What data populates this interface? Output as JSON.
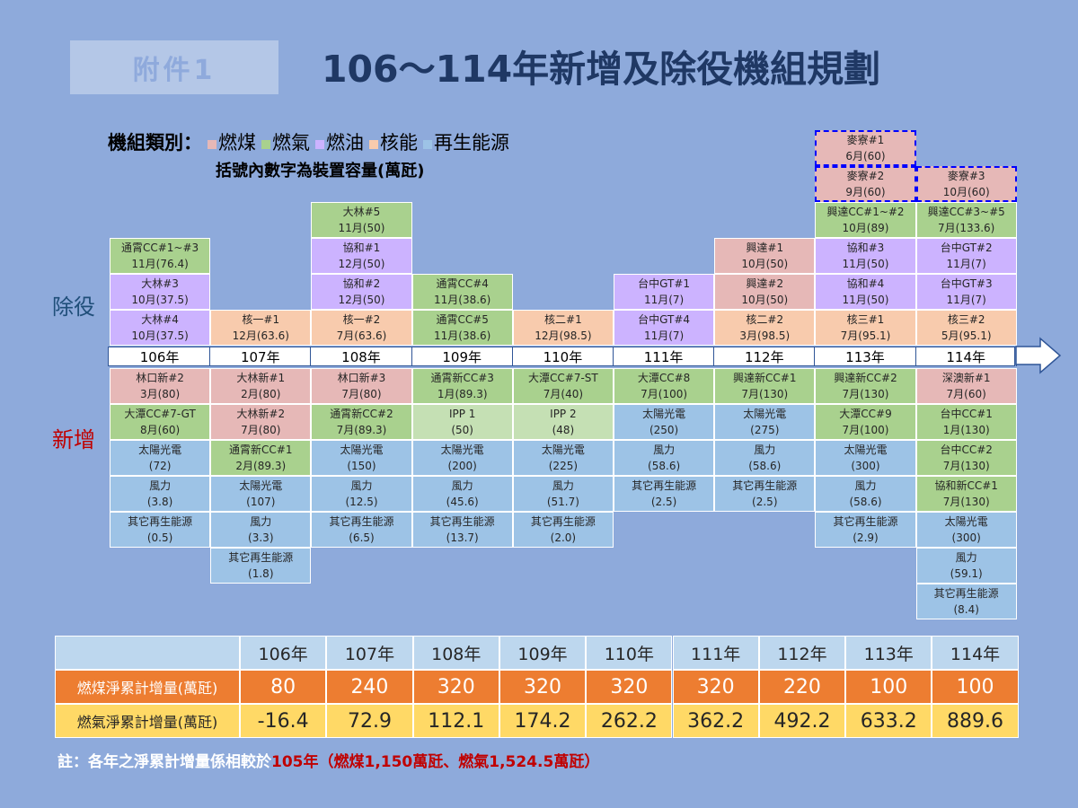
{
  "badge": "附件1",
  "title": "106～114年新增及除役機組規劃",
  "legend": {
    "prefix": "機組類別：",
    "items": [
      {
        "label": "燃煤",
        "color": "#e6b8b7"
      },
      {
        "label": "燃氣",
        "color": "#a9d18e"
      },
      {
        "label": "燃油",
        "color": "#ccb3ff"
      },
      {
        "label": "核能",
        "color": "#f8cbad"
      },
      {
        "label": "再生能源",
        "color": "#9dc3e6"
      }
    ],
    "note": "括號內數字為裝置容量(萬瓩)"
  },
  "side_labels": {
    "retire": "除役",
    "new": "新增"
  },
  "colors": {
    "coal": "#e6b8b7",
    "gas": "#a9d18e",
    "gas_light": "#c5e0b4",
    "oil": "#ccb3ff",
    "nuclear": "#f8cbad",
    "renew": "#9dc3e6",
    "retire_text": "#1f4e79",
    "new_text": "#c00000"
  },
  "years": [
    "106年",
    "107年",
    "108年",
    "109年",
    "110年",
    "111年",
    "112年",
    "113年",
    "114年"
  ],
  "retire": [
    [
      {
        "name": "大林#4",
        "cap": "10月(37.5)",
        "type": "oil"
      },
      {
        "name": "大林#3",
        "cap": "10月(37.5)",
        "type": "oil"
      },
      {
        "name": "通霄CC#1~#3",
        "cap": "11月(76.4)",
        "type": "gas"
      }
    ],
    [
      {
        "name": "核一#1",
        "cap": "12月(63.6)",
        "type": "nuclear"
      }
    ],
    [
      {
        "name": "核一#2",
        "cap": "7月(63.6)",
        "type": "nuclear"
      },
      {
        "name": "協和#2",
        "cap": "12月(50)",
        "type": "oil"
      },
      {
        "name": "協和#1",
        "cap": "12月(50)",
        "type": "oil"
      },
      {
        "name": "大林#5",
        "cap": "11月(50)",
        "type": "gas"
      }
    ],
    [
      {
        "name": "通霄CC#5",
        "cap": "11月(38.6)",
        "type": "gas"
      },
      {
        "name": "通霄CC#4",
        "cap": "11月(38.6)",
        "type": "gas"
      }
    ],
    [
      {
        "name": "核二#1",
        "cap": "12月(98.5)",
        "type": "nuclear"
      }
    ],
    [
      {
        "name": "台中GT#4",
        "cap": "11月(7)",
        "type": "oil"
      },
      {
        "name": "台中GT#1",
        "cap": "11月(7)",
        "type": "oil"
      }
    ],
    [
      {
        "name": "核二#2",
        "cap": "3月(98.5)",
        "type": "nuclear"
      },
      {
        "name": "興達#2",
        "cap": "10月(50)",
        "type": "coal"
      },
      {
        "name": "興達#1",
        "cap": "10月(50)",
        "type": "coal"
      }
    ],
    [
      {
        "name": "核三#1",
        "cap": "7月(95.1)",
        "type": "nuclear"
      },
      {
        "name": "協和#4",
        "cap": "11月(50)",
        "type": "oil"
      },
      {
        "name": "協和#3",
        "cap": "11月(50)",
        "type": "oil"
      },
      {
        "name": "興達CC#1~#2",
        "cap": "10月(89)",
        "type": "gas"
      },
      {
        "name": "麥寮#2",
        "cap": "9月(60)",
        "type": "coal",
        "dashed": true
      },
      {
        "name": "麥寮#1",
        "cap": "6月(60)",
        "type": "coal",
        "dashed": true
      }
    ],
    [
      {
        "name": "核三#2",
        "cap": "5月(95.1)",
        "type": "nuclear"
      },
      {
        "name": "台中GT#3",
        "cap": "11月(7)",
        "type": "oil"
      },
      {
        "name": "台中GT#2",
        "cap": "11月(7)",
        "type": "oil"
      },
      {
        "name": "興達CC#3~#5",
        "cap": "7月(133.6)",
        "type": "gas"
      },
      {
        "name": "麥寮#3",
        "cap": "10月(60)",
        "type": "coal",
        "dashed": true
      }
    ]
  ],
  "added": [
    [
      {
        "name": "林口新#2",
        "cap": "3月(80)",
        "type": "coal"
      },
      {
        "name": "大潭CC#7-GT",
        "cap": "8月(60)",
        "type": "gas"
      },
      {
        "name": "太陽光電",
        "cap": "(72)",
        "type": "renew"
      },
      {
        "name": "風力",
        "cap": "(3.8)",
        "type": "renew"
      },
      {
        "name": "其它再生能源",
        "cap": "(0.5)",
        "type": "renew"
      }
    ],
    [
      {
        "name": "大林新#1",
        "cap": "2月(80)",
        "type": "coal"
      },
      {
        "name": "大林新#2",
        "cap": "7月(80)",
        "type": "coal"
      },
      {
        "name": "通霄新CC#1",
        "cap": "2月(89.3)",
        "type": "gas"
      },
      {
        "name": "太陽光電",
        "cap": "(107)",
        "type": "renew"
      },
      {
        "name": "風力",
        "cap": "(3.3)",
        "type": "renew"
      },
      {
        "name": "其它再生能源",
        "cap": "(1.8)",
        "type": "renew"
      }
    ],
    [
      {
        "name": "林口新#3",
        "cap": "7月(80)",
        "type": "coal"
      },
      {
        "name": "通霄新CC#2",
        "cap": "7月(89.3)",
        "type": "gas"
      },
      {
        "name": "太陽光電",
        "cap": "(150)",
        "type": "renew"
      },
      {
        "name": "風力",
        "cap": "(12.5)",
        "type": "renew"
      },
      {
        "name": "其它再生能源",
        "cap": "(6.5)",
        "type": "renew"
      }
    ],
    [
      {
        "name": "通霄新CC#3",
        "cap": "1月(89.3)",
        "type": "gas"
      },
      {
        "name": "IPP 1",
        "cap": "(50)",
        "type": "gas_light"
      },
      {
        "name": "太陽光電",
        "cap": "(200)",
        "type": "renew"
      },
      {
        "name": "風力",
        "cap": "(45.6)",
        "type": "renew"
      },
      {
        "name": "其它再生能源",
        "cap": "(13.7)",
        "type": "renew"
      }
    ],
    [
      {
        "name": "大潭CC#7-ST",
        "cap": "7月(40)",
        "type": "gas"
      },
      {
        "name": "IPP 2",
        "cap": "(48)",
        "type": "gas_light"
      },
      {
        "name": "太陽光電",
        "cap": "(225)",
        "type": "renew"
      },
      {
        "name": "風力",
        "cap": "(51.7)",
        "type": "renew"
      },
      {
        "name": "其它再生能源",
        "cap": "(2.0)",
        "type": "renew"
      }
    ],
    [
      {
        "name": "大潭CC#8",
        "cap": "7月(100)",
        "type": "gas"
      },
      {
        "name": "太陽光電",
        "cap": "(250)",
        "type": "renew"
      },
      {
        "name": "風力",
        "cap": "(58.6)",
        "type": "renew"
      },
      {
        "name": "其它再生能源",
        "cap": "(2.5)",
        "type": "renew"
      }
    ],
    [
      {
        "name": "興達新CC#1",
        "cap": "7月(130)",
        "type": "gas"
      },
      {
        "name": "太陽光電",
        "cap": "(275)",
        "type": "renew"
      },
      {
        "name": "風力",
        "cap": "(58.6)",
        "type": "renew"
      },
      {
        "name": "其它再生能源",
        "cap": "(2.5)",
        "type": "renew"
      }
    ],
    [
      {
        "name": "興達新CC#2",
        "cap": "7月(130)",
        "type": "gas"
      },
      {
        "name": "大潭CC#9",
        "cap": "7月(100)",
        "type": "gas"
      },
      {
        "name": "太陽光電",
        "cap": "(300)",
        "type": "renew"
      },
      {
        "name": "風力",
        "cap": "(58.6)",
        "type": "renew"
      },
      {
        "name": "其它再生能源",
        "cap": "(2.9)",
        "type": "renew"
      }
    ],
    [
      {
        "name": "深澳新#1",
        "cap": "7月(60)",
        "type": "coal"
      },
      {
        "name": "台中CC#1",
        "cap": "1月(130)",
        "type": "gas"
      },
      {
        "name": "台中CC#2",
        "cap": "7月(130)",
        "type": "gas"
      },
      {
        "name": "協和新CC#1",
        "cap": "7月(130)",
        "type": "gas"
      },
      {
        "name": "太陽光電",
        "cap": "(300)",
        "type": "renew"
      },
      {
        "name": "風力",
        "cap": "(59.1)",
        "type": "renew"
      },
      {
        "name": "其它再生能源",
        "cap": "(8.4)",
        "type": "renew"
      }
    ]
  ],
  "summary": {
    "years": [
      "106年",
      "107年",
      "108年",
      "109年",
      "110年",
      "111年",
      "112年",
      "113年",
      "114年"
    ],
    "rows": [
      {
        "label": "燃煤淨累計增量(萬瓩)",
        "values": [
          "80",
          "240",
          "320",
          "320",
          "320",
          "320",
          "220",
          "100",
          "100"
        ],
        "bg": "#ed7d31",
        "fg": "#ffffff"
      },
      {
        "label": "燃氣淨累計增量(萬瓩)",
        "values": [
          "-16.4",
          "72.9",
          "112.1",
          "174.2",
          "262.2",
          "362.2",
          "492.2",
          "633.2",
          "889.6"
        ],
        "bg": "#ffd966",
        "fg": "#262626"
      }
    ],
    "header_bg": "#bdd7ee"
  },
  "footnote": {
    "prefix": "註：各年之淨累計增量係相較於",
    "highlight": "105年（燃煤1,150萬瓩、燃氣1,524.5萬瓩）"
  }
}
